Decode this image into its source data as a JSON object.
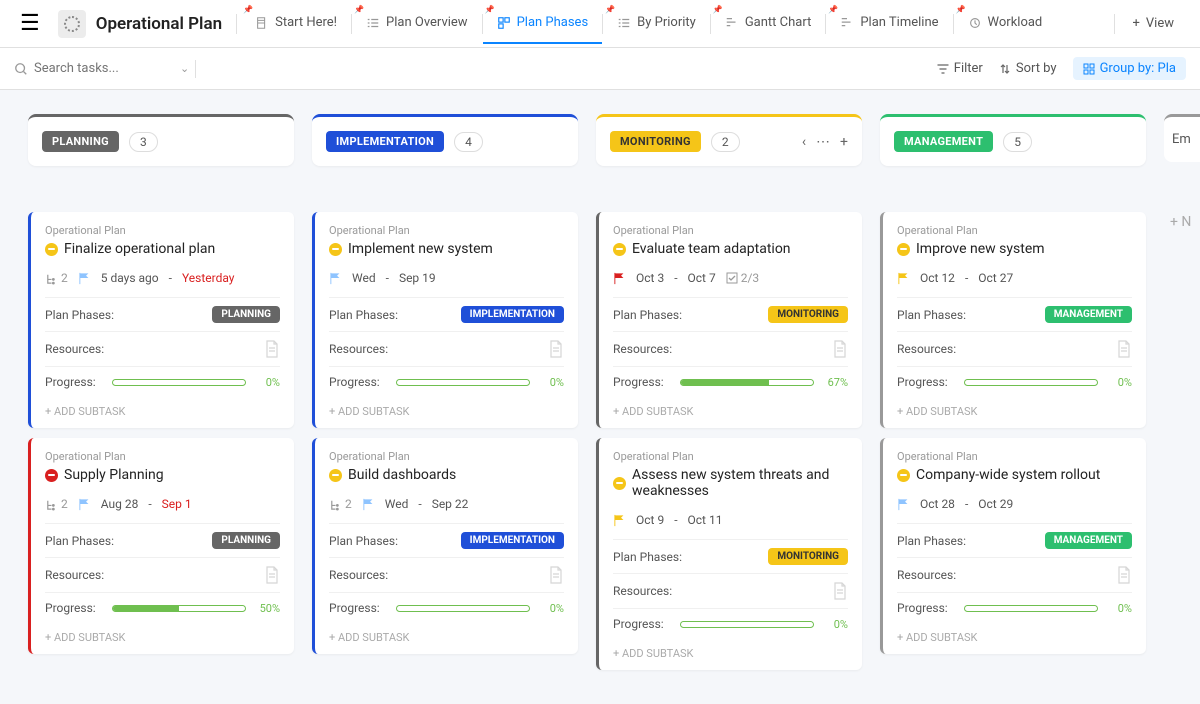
{
  "header": {
    "title": "Operational Plan",
    "tabs": [
      {
        "label": "Start Here!",
        "active": false
      },
      {
        "label": "Plan Overview",
        "active": false
      },
      {
        "label": "Plan Phases",
        "active": true
      },
      {
        "label": "By Priority",
        "active": false
      },
      {
        "label": "Gantt Chart",
        "active": false
      },
      {
        "label": "Plan Timeline",
        "active": false
      },
      {
        "label": "Workload",
        "active": false
      }
    ],
    "view_label": "View"
  },
  "toolbar": {
    "search_placeholder": "Search tasks...",
    "filter": "Filter",
    "sort": "Sort by",
    "groupby": "Group by: Pla"
  },
  "columns": [
    {
      "name": "PLANNING",
      "count": 3,
      "color": "#666666",
      "text_color": "#ffffff",
      "class": "planning",
      "cards": [
        {
          "crumb": "Operational Plan",
          "title": "Finalize operational plan",
          "status": "yellow",
          "subtasks": "2",
          "flag_color": "#8fc4ff",
          "date1": "5 days ago",
          "date_sep": "-",
          "date2": "Yesterday",
          "date2_red": true,
          "phase": "PLANNING",
          "phase_bg": "#666666",
          "phase_fg": "#ffffff",
          "progress": 0,
          "border_class": "p-planning"
        },
        {
          "crumb": "Operational Plan",
          "title": "Supply Planning",
          "status": "red",
          "subtasks": "2",
          "flag_color": "#8fc4ff",
          "date1": "Aug 28",
          "date_sep": "-",
          "date2": "Sep 1",
          "date2_red": true,
          "phase": "PLANNING",
          "phase_bg": "#666666",
          "phase_fg": "#ffffff",
          "progress": 50,
          "border_class": "p-planning2"
        }
      ]
    },
    {
      "name": "IMPLEMENTATION",
      "count": 4,
      "color": "#1f4fd8",
      "text_color": "#ffffff",
      "class": "implementation",
      "cards": [
        {
          "crumb": "Operational Plan",
          "title": "Implement new system",
          "status": "yellow",
          "flag_color": "#8fc4ff",
          "date1": "Wed",
          "date_sep": "-",
          "date2": "Sep 19",
          "phase": "IMPLEMENTATION",
          "phase_bg": "#1f4fd8",
          "phase_fg": "#ffffff",
          "progress": 0,
          "border_class": "p-impl"
        },
        {
          "crumb": "Operational Plan",
          "title": "Build dashboards",
          "status": "yellow",
          "subtasks": "2",
          "flag_color": "#8fc4ff",
          "date1": "Wed",
          "date_sep": "-",
          "date2": "Sep 22",
          "phase": "IMPLEMENTATION",
          "phase_bg": "#1f4fd8",
          "phase_fg": "#ffffff",
          "progress": 0,
          "border_class": "p-impl"
        }
      ]
    },
    {
      "name": "MONITORING",
      "count": 2,
      "color": "#f5c518",
      "text_color": "#333333",
      "class": "monitoring",
      "show_actions": true,
      "cards": [
        {
          "crumb": "Operational Plan",
          "title": "Evaluate team adaptation",
          "status": "yellow",
          "flag_color": "#d92020",
          "date1": "Oct 3",
          "date_sep": "-",
          "date2": "Oct 7",
          "checklist": "2/3",
          "phase": "MONITORING",
          "phase_bg": "#f5c518",
          "phase_fg": "#333333",
          "progress": 67,
          "border_class": "p-mon"
        },
        {
          "crumb": "Operational Plan",
          "title": "Assess new system threats and weaknesses",
          "status": "yellow",
          "flag_color": "#f5c518",
          "date1": "Oct 9",
          "date_sep": "-",
          "date2": "Oct 11",
          "phase": "MONITORING",
          "phase_bg": "#f5c518",
          "phase_fg": "#333333",
          "progress": 0,
          "border_class": "p-mon"
        }
      ]
    },
    {
      "name": "MANAGEMENT",
      "count": 5,
      "color": "#2dbf6f",
      "text_color": "#ffffff",
      "class": "management",
      "cards": [
        {
          "crumb": "Operational Plan",
          "title": "Improve new system",
          "status": "yellow",
          "flag_color": "#f5c518",
          "date1": "Oct 12",
          "date_sep": "-",
          "date2": "Oct 27",
          "phase": "MANAGEMENT",
          "phase_bg": "#2dbf6f",
          "phase_fg": "#ffffff",
          "progress": 0,
          "border_class": "p-mgmt"
        },
        {
          "crumb": "Operational Plan",
          "title": "Company-wide system rollout",
          "status": "yellow",
          "flag_color": "#8fc4ff",
          "date1": "Oct 28",
          "date_sep": "-",
          "date2": "Oct 29",
          "phase": "MANAGEMENT",
          "phase_bg": "#2dbf6f",
          "phase_fg": "#ffffff",
          "progress": 0,
          "border_class": "p-mgmt"
        }
      ]
    }
  ],
  "next_column": "Em",
  "labels": {
    "plan_phases": "Plan Phases:",
    "resources": "Resources:",
    "progress": "Progress:",
    "add_subtask": "+ ADD SUBTASK",
    "new_card": "+ N"
  }
}
